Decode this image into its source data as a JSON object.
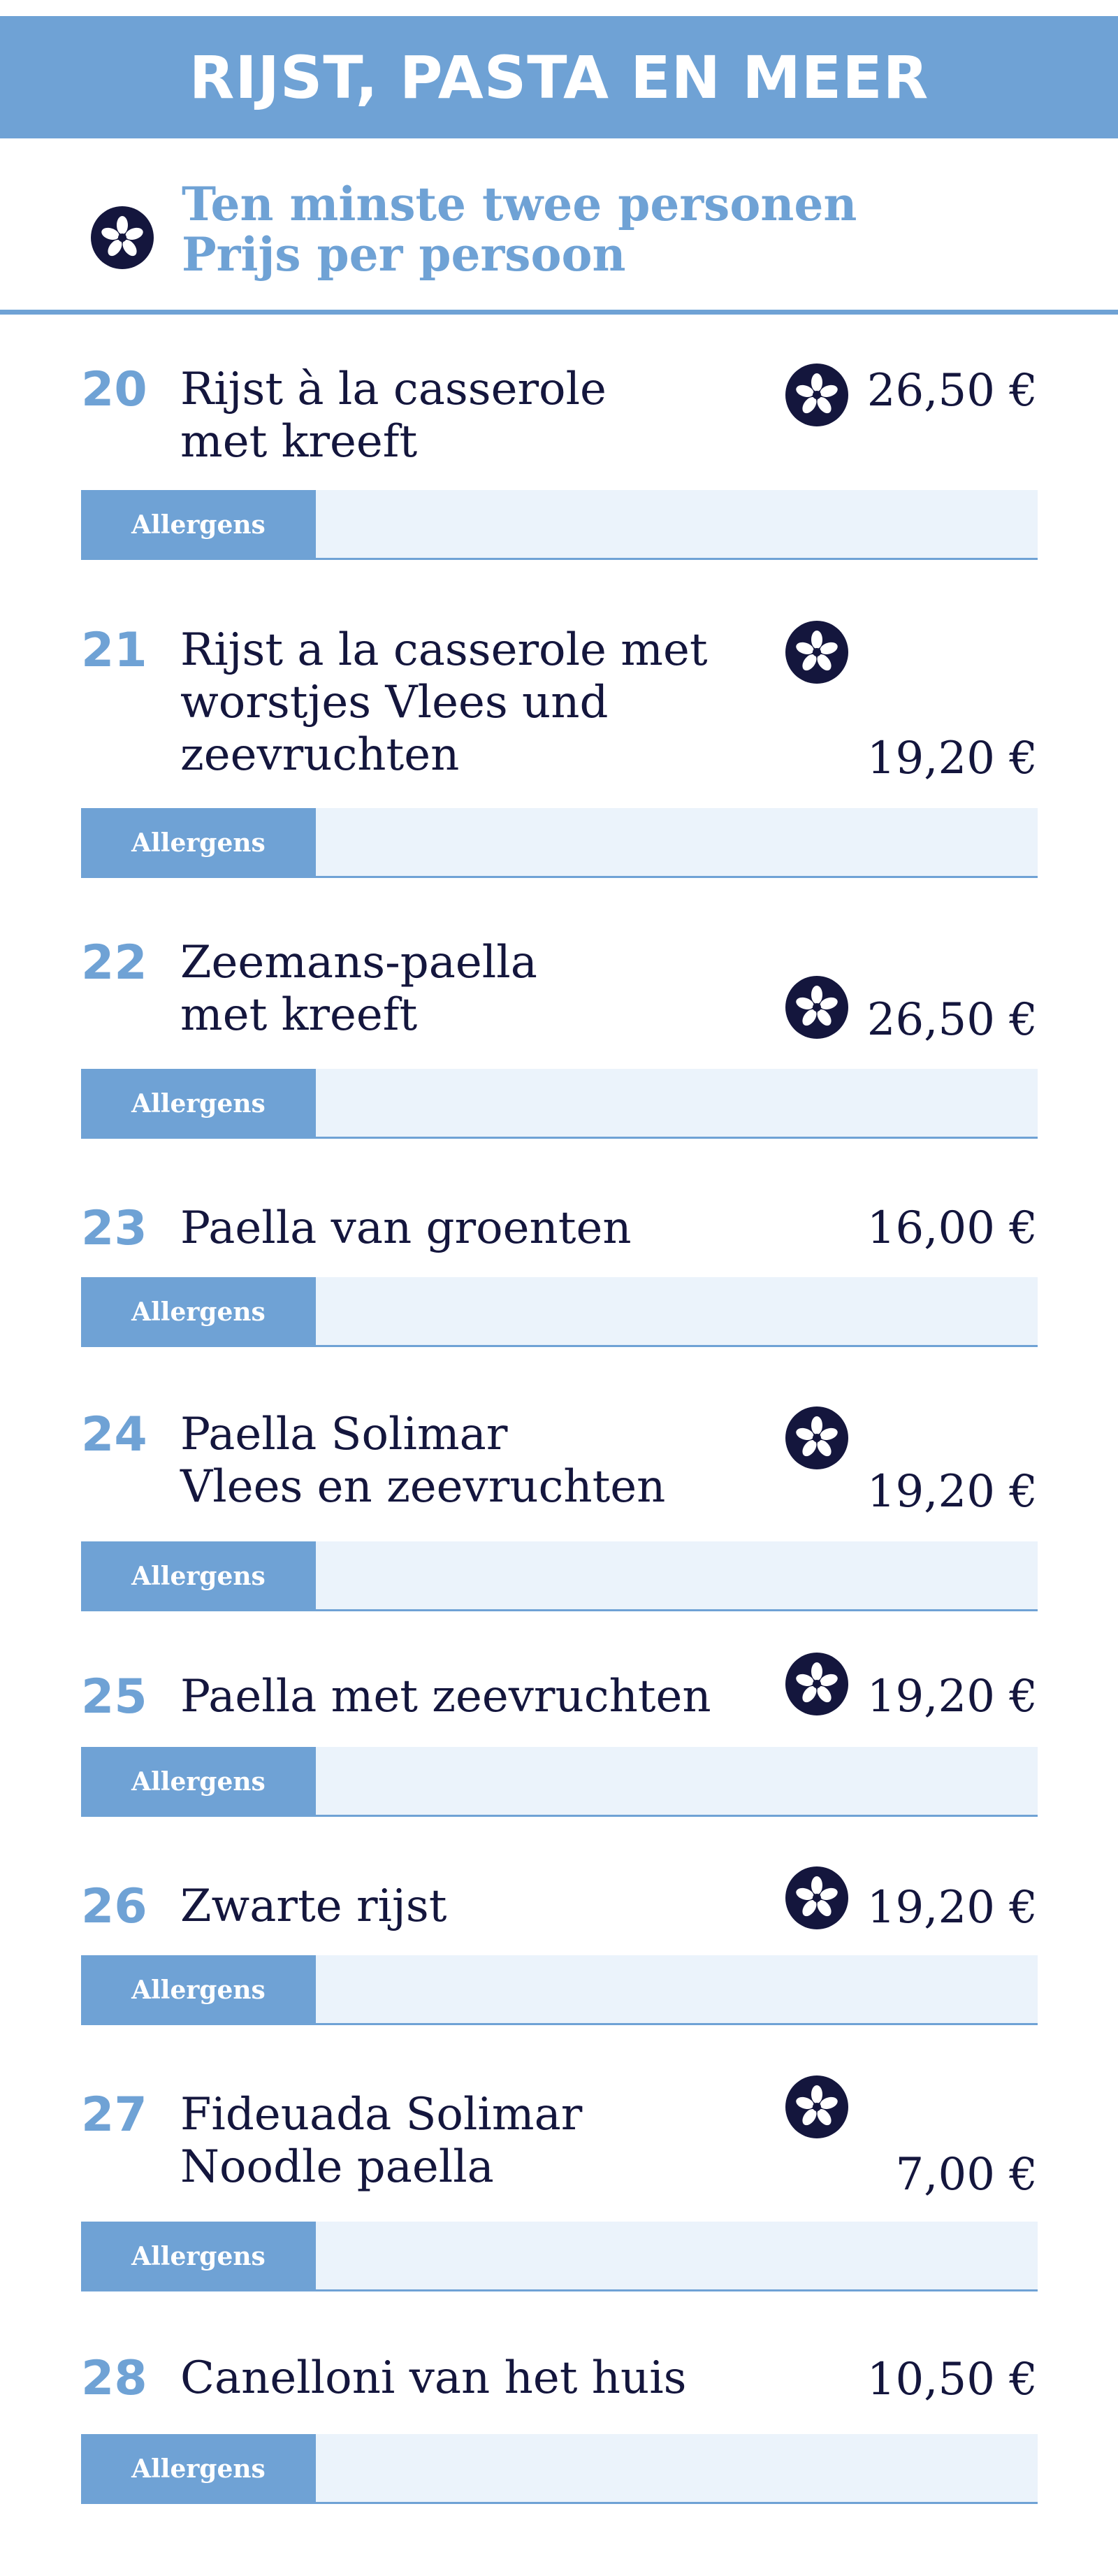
{
  "header": {
    "title": "RIJST, PASTA EN MEER"
  },
  "note": {
    "icon": "asterisk-flower-icon",
    "line1": "Ten minste twee personen",
    "line2": "Prijs per persoon"
  },
  "allergen_label": "Allergens",
  "colors": {
    "accent": "#6fa2d5",
    "dark": "#14163d",
    "bar": "#ebf3fb"
  },
  "items": [
    {
      "number": "20",
      "lines": [
        "Rijst à la casserole",
        "met kreeft"
      ],
      "min_two_persons": true,
      "price": "26,50 €"
    },
    {
      "number": "21",
      "lines": [
        "Rijst a la casserole met",
        "worstjes Vlees und",
        "zeevruchten"
      ],
      "min_two_persons": true,
      "price": "19,20 €"
    },
    {
      "number": "22",
      "lines": [
        "Zeemans-paella",
        "met kreeft"
      ],
      "min_two_persons": true,
      "price": "26,50 €"
    },
    {
      "number": "23",
      "lines": [
        "Paella van groenten"
      ],
      "min_two_persons": false,
      "price": "16,00 €"
    },
    {
      "number": "24",
      "lines": [
        "Paella Solimar",
        "Vlees en zeevruchten"
      ],
      "min_two_persons": true,
      "price": "19,20 €"
    },
    {
      "number": "25",
      "lines": [
        "Paella met zeevruchten"
      ],
      "min_two_persons": true,
      "price": "19,20 €"
    },
    {
      "number": "26",
      "lines": [
        "Zwarte rijst"
      ],
      "min_two_persons": true,
      "price": "19,20 €"
    },
    {
      "number": "27",
      "lines": [
        "Fideuada Solimar",
        "Noodle paella"
      ],
      "min_two_persons": true,
      "price": "7,00 €"
    },
    {
      "number": "28",
      "lines": [
        "Canelloni van het huis"
      ],
      "min_two_persons": false,
      "price": "10,50 €"
    }
  ]
}
